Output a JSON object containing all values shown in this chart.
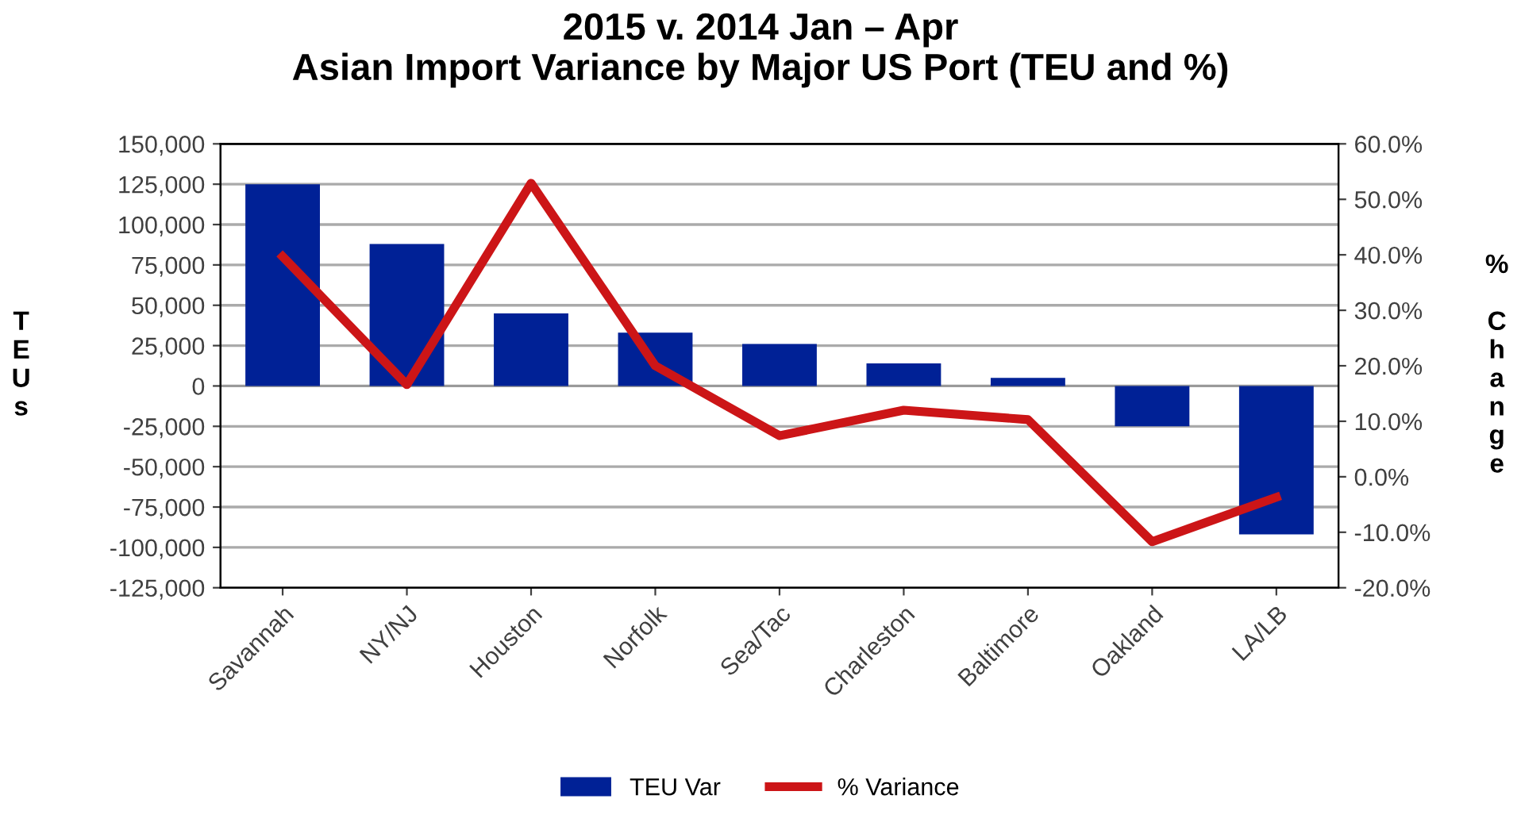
{
  "chart_data": {
    "type": "bar",
    "title": "2015 v. 2014 Jan – Apr\nAsian Import Variance by Major US Port (TEU and %)",
    "ylabel": "T\nE\nU\ns",
    "y2label": "%\n\nC\nh\na\nn\ng\ne",
    "categories": [
      "Savannah",
      "NY/NJ",
      "Houston",
      "Norfolk",
      "Sea/Tac",
      "Charleston",
      "Baltimore",
      "Oakland",
      "LA/LB"
    ],
    "series": [
      {
        "name": "TEU Var",
        "color": "#002196",
        "values": [
          125000,
          88000,
          45000,
          33000,
          26000,
          14000,
          5000,
          -25000,
          -92000
        ]
      },
      {
        "name": "% Variance",
        "type": "line",
        "axis": "y2",
        "color": "#cc1517",
        "values": [
          39.7,
          16.6,
          52.9,
          20.0,
          7.4,
          12.0,
          10.3,
          -11.7,
          -3.7
        ]
      }
    ],
    "ylim": [
      -125000,
      150000
    ],
    "yticks": [
      {
        "value": -125000,
        "label": "-125,000"
      },
      {
        "value": -100000,
        "label": "-100,000"
      },
      {
        "value": -75000,
        "label": "-75,000"
      },
      {
        "value": -50000,
        "label": "-50,000"
      },
      {
        "value": -25000,
        "label": "-25,000"
      },
      0,
      {
        "value": 25000,
        "label": "25,000"
      },
      {
        "value": 50000,
        "label": "50,000"
      },
      {
        "value": 75000,
        "label": "75,000"
      },
      {
        "value": 100000,
        "label": "100,000"
      },
      {
        "value": 125000,
        "label": "125,000"
      },
      {
        "value": 150000,
        "label": "150,000"
      }
    ],
    "y2lim": [
      -20,
      60
    ],
    "y2ticks": [
      {
        "value": -20,
        "label": "-20.0%"
      },
      {
        "value": -10,
        "label": "-10.0%"
      },
      {
        "value": 0,
        "label": "0.0%"
      },
      {
        "value": 10,
        "label": "10.0%"
      },
      {
        "value": 20,
        "label": "20.0%"
      },
      {
        "value": 30,
        "label": "30.0%"
      },
      {
        "value": 40,
        "label": "40.0%"
      },
      {
        "value": 50,
        "label": "50.0%"
      },
      {
        "value": 60,
        "label": "60.0%"
      }
    ],
    "grid": "y",
    "legend": "bottom",
    "marker": "none",
    "line_style": "solid"
  }
}
